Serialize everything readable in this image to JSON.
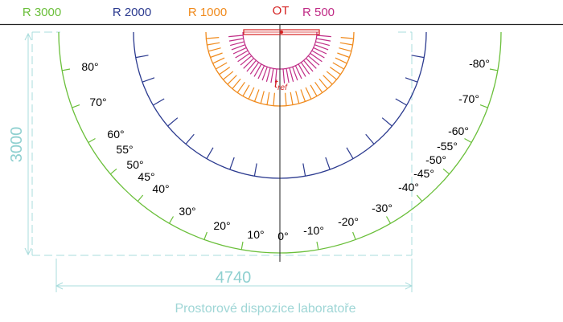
{
  "legend": [
    {
      "key": "r3000",
      "label": "R 3000",
      "color": "#6abf3a"
    },
    {
      "key": "r2000",
      "label": "R 2000",
      "color": "#2b3a8f"
    },
    {
      "key": "r1000",
      "label": "R 1000",
      "color": "#f08a1c"
    },
    {
      "key": "ot",
      "label": "OT",
      "color": "#d42020"
    },
    {
      "key": "r500",
      "label": "R 500",
      "color": "#c02c86"
    }
  ],
  "colors": {
    "baseline": "#222222",
    "axis": "#222222",
    "dimension": "#a8dcdc",
    "dimension_text": "#8fd0d0",
    "caption": "#9fd6d6",
    "label_text": "#000000"
  },
  "ot_reference_label": "t_ref",
  "ot_reference_main": "t",
  "ot_reference_sub": "ref",
  "angle_labels_left": [
    "80°",
    "70°",
    "60°",
    "55°",
    "50°",
    "45°",
    "40°",
    "30°",
    "20°",
    "10°",
    "0°"
  ],
  "angle_labels_right": [
    "-80°",
    "-70°",
    "-60°",
    "-55°",
    "-50°",
    "-45°",
    "-40°",
    "-30°",
    "-20°",
    "-10°"
  ],
  "dimensions": {
    "height": "3000",
    "width": "4740"
  },
  "caption": "Prostorové dispozice laboratoře"
}
